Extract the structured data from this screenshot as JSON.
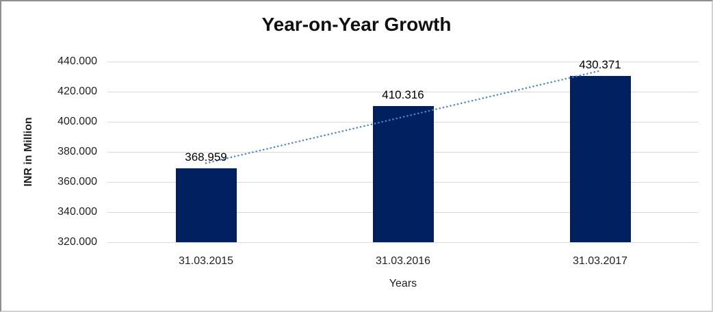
{
  "chart_data": {
    "type": "bar",
    "title": "Year-on-Year Growth",
    "categories": [
      "31.03.2015",
      "31.03.2016",
      "31.03.2017"
    ],
    "values": [
      368.959,
      410.316,
      430.371
    ],
    "value_labels": [
      "368.959",
      "410.316",
      "430.371"
    ],
    "xlabel": "Years",
    "ylabel": "INR in Million",
    "ylim": [
      320,
      440
    ],
    "ytick_step": 20,
    "ytick_labels": [
      "320.000",
      "340.000",
      "360.000",
      "380.000",
      "400.000",
      "420.000",
      "440.000"
    ],
    "grid": true,
    "legend": "none",
    "trendline": {
      "type": "linear",
      "style": "dotted"
    },
    "colors": {
      "bar": "#002060",
      "trendline": "#4f86c8",
      "gridline": "#d9d9d9",
      "text": "#1f1f1f",
      "border": "#8f8f8f"
    }
  }
}
